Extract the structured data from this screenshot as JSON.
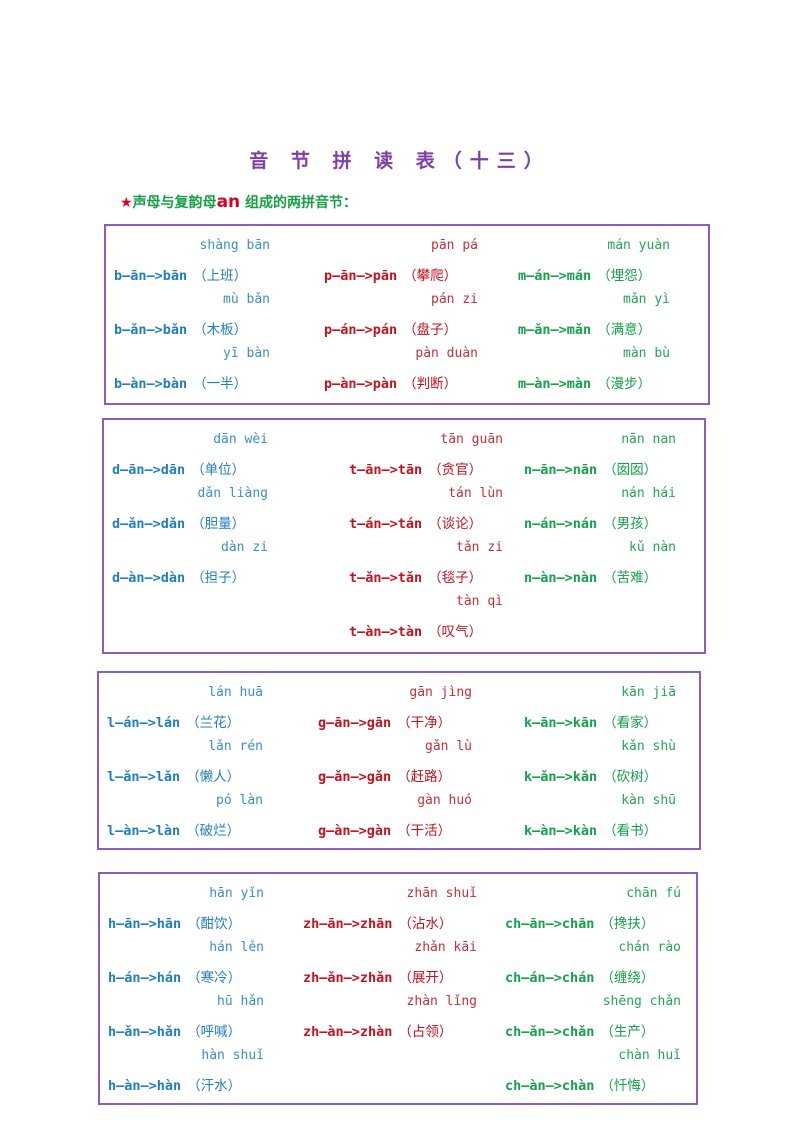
{
  "title": "音 节 拼 读 表（十三）",
  "subtitle": {
    "star": "★",
    "prefix": "声母与复韵母",
    "final": "an",
    "suffix": " 组成的两拼音节："
  },
  "colors": {
    "blue": "#1f7fc0",
    "red": "#c4121f",
    "green": "#14a24a",
    "border": "#8e5cc0",
    "title": "#7d3fa8"
  },
  "boxes": [
    {
      "columns": [
        [
          {
            "pinyin": "shàng bān",
            "formula": "b—ān—>bān",
            "word": "（上班）"
          },
          {
            "pinyin": "mù bǎn",
            "formula": "b—ǎn—>bǎn",
            "word": "（木板）"
          },
          {
            "pinyin": "yī bàn",
            "formula": "b—àn—>bàn",
            "word": "（一半）"
          }
        ],
        [
          {
            "pinyin": "pān pá",
            "formula": "p—ān—>pān",
            "word": "（攀爬）"
          },
          {
            "pinyin": "pán zi",
            "formula": "p—án—>pán",
            "word": "（盘子）"
          },
          {
            "pinyin": "pàn duàn",
            "formula": "p—àn—>pàn",
            "word": "（判断）"
          }
        ],
        [
          {
            "pinyin": "mán yuàn",
            "formula": "m—án—>mán",
            "word": "（埋怨）"
          },
          {
            "pinyin": "mǎn yì",
            "formula": "m—ǎn—>mǎn",
            "word": "（满意）"
          },
          {
            "pinyin": "màn bù",
            "formula": "m—àn—>màn",
            "word": "（漫步）"
          }
        ]
      ]
    },
    {
      "columns": [
        [
          {
            "pinyin": "dān wèi",
            "formula": "d—ān—>dān",
            "word": "（单位）"
          },
          {
            "pinyin": "dǎn liàng",
            "formula": "d—ǎn—>dǎn",
            "word": "（胆量）"
          },
          {
            "pinyin": "dàn zi",
            "formula": "d—àn—>dàn",
            "word": "（担子）"
          }
        ],
        [
          {
            "pinyin": "tān guān",
            "formula": "t—ān—>tān",
            "word": "（贪官）"
          },
          {
            "pinyin": "tán lùn",
            "formula": "t—án—>tán",
            "word": "（谈论）"
          },
          {
            "pinyin": "tǎn zi",
            "formula": "t—ǎn—>tǎn",
            "word": "（毯子）"
          },
          {
            "pinyin": "tàn qì",
            "formula": "t—àn—>tàn",
            "word": "（叹气）"
          }
        ],
        [
          {
            "pinyin": "nān nan",
            "formula": "n—ān—>nān",
            "word": "（囡囡）"
          },
          {
            "pinyin": "nán hái",
            "formula": "n—án—>nán",
            "word": "（男孩）"
          },
          {
            "pinyin": "kǔ nàn",
            "formula": "n—àn—>nàn",
            "word": "（苦难）"
          }
        ]
      ]
    },
    {
      "columns": [
        [
          {
            "pinyin": "lán huā",
            "formula": "l—án—>lán",
            "word": "（兰花）"
          },
          {
            "pinyin": "lǎn rén",
            "formula": "l—ǎn—>lǎn",
            "word": "（懒人）"
          },
          {
            "pinyin": "pó làn",
            "formula": "l—àn—>làn",
            "word": "（破烂）"
          }
        ],
        [
          {
            "pinyin": "gān jìng",
            "formula": "g—ān—>gān",
            "word": "（干净）"
          },
          {
            "pinyin": "gǎn lù",
            "formula": "g—ǎn—>gǎn",
            "word": "（赶路）"
          },
          {
            "pinyin": "gàn huó",
            "formula": "g—àn—>gàn",
            "word": "（干活）"
          }
        ],
        [
          {
            "pinyin": "kān jiā",
            "formula": "k—ān—>kān",
            "word": "（看家）"
          },
          {
            "pinyin": "kǎn shù",
            "formula": "k—ǎn—>kǎn",
            "word": "（砍树）"
          },
          {
            "pinyin": "kàn shū",
            "formula": "k—àn—>kàn",
            "word": "（看书）"
          }
        ]
      ]
    },
    {
      "columns": [
        [
          {
            "pinyin": "hān yǐn",
            "formula": "h—ān—>hān",
            "word": "（酣饮）"
          },
          {
            "pinyin": "hán lěn",
            "formula": "h—án—>hán",
            "word": "（寒冷）"
          },
          {
            "pinyin": "hū hǎn",
            "formula": "h—ǎn—>hǎn",
            "word": "（呼喊）"
          },
          {
            "pinyin": "hàn shuǐ",
            "formula": "h—àn—>hàn",
            "word": "（汗水）"
          }
        ],
        [
          {
            "pinyin": "zhān shuǐ",
            "formula": "zh—ān—>zhān",
            "word": "（沾水）"
          },
          {
            "pinyin": "zhǎn kāi",
            "formula": "zh—ǎn—>zhǎn",
            "word": "（展开）"
          },
          {
            "pinyin": "zhàn lǐng",
            "formula": "zh—àn—>zhàn",
            "word": "（占领）"
          }
        ],
        [
          {
            "pinyin": "chān fú",
            "formula": "ch—ān—>chān",
            "word": "（搀扶）"
          },
          {
            "pinyin": "chán rào",
            "formula": "ch—án—>chán",
            "word": "（缠绕）"
          },
          {
            "pinyin": "shēng chǎn",
            "formula": "ch—ǎn—>chǎn",
            "word": "（生产）"
          },
          {
            "pinyin": "chàn huǐ",
            "formula": "ch—àn—>chàn",
            "word": "（忏悔）"
          }
        ]
      ]
    }
  ]
}
